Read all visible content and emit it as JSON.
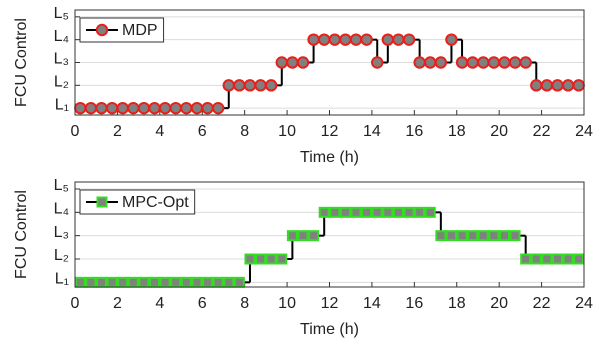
{
  "chart_data": [
    {
      "type": "step",
      "xlabel": "Time (h)",
      "ylabel": "FCU Control",
      "xlim": [
        0,
        24
      ],
      "xticks": [
        0,
        2,
        4,
        6,
        8,
        10,
        12,
        14,
        16,
        18,
        20,
        22,
        24
      ],
      "ylim": [
        0.7,
        5.3
      ],
      "yticks": [
        {
          "value": 1,
          "label": "L₁"
        },
        {
          "value": 2,
          "label": "L₂"
        },
        {
          "value": 3,
          "label": "L₃"
        },
        {
          "value": 4,
          "label": "L₄"
        },
        {
          "value": 5,
          "label": "L₅"
        }
      ],
      "grid": true,
      "legend": "upper left",
      "series": [
        {
          "name": "MDP",
          "color": "#000000",
          "marker": "circle",
          "marker_face_color": "#808080",
          "marker_edge_color": "#e8201c",
          "x": [
            0.25,
            0.75,
            1.25,
            1.75,
            2.25,
            2.75,
            3.25,
            3.75,
            4.25,
            4.75,
            5.25,
            5.75,
            6.25,
            6.75,
            7.25,
            7.75,
            8.25,
            8.75,
            9.25,
            9.75,
            10.25,
            10.75,
            11.25,
            11.75,
            12.25,
            12.75,
            13.25,
            13.75,
            14.25,
            14.75,
            15.25,
            15.75,
            16.25,
            16.75,
            17.25,
            17.75,
            18.25,
            18.75,
            19.25,
            19.75,
            20.25,
            20.75,
            21.25,
            21.75,
            22.25,
            22.75,
            23.25,
            23.75
          ],
          "values": [
            1,
            1,
            1,
            1,
            1,
            1,
            1,
            1,
            1,
            1,
            1,
            1,
            1,
            1,
            2,
            2,
            2,
            2,
            2,
            3,
            3,
            3,
            4,
            4,
            4,
            4,
            4,
            4,
            3,
            4,
            4,
            4,
            3,
            3,
            3,
            4,
            3,
            3,
            3,
            3,
            3,
            3,
            3,
            2,
            2,
            2,
            2,
            2
          ]
        }
      ]
    },
    {
      "type": "step",
      "xlabel": "Time (h)",
      "ylabel": "FCU Control",
      "xlim": [
        0,
        24
      ],
      "xticks": [
        0,
        2,
        4,
        6,
        8,
        10,
        12,
        14,
        16,
        18,
        20,
        22,
        24
      ],
      "ylim": [
        0.8,
        5.3
      ],
      "yticks": [
        {
          "value": 1,
          "label": "L₁"
        },
        {
          "value": 2,
          "label": "L₂"
        },
        {
          "value": 3,
          "label": "L₃"
        },
        {
          "value": 4,
          "label": "L₄"
        },
        {
          "value": 5,
          "label": "L₅"
        }
      ],
      "grid": true,
      "legend": "upper left",
      "series": [
        {
          "name": "MPC-Opt",
          "color": "#000000",
          "marker": "square",
          "marker_face_color": "#808080",
          "marker_edge_color": "#33dd22",
          "x": [
            0.25,
            0.75,
            1.25,
            1.75,
            2.25,
            2.75,
            3.25,
            3.75,
            4.25,
            4.75,
            5.25,
            5.75,
            6.25,
            6.75,
            7.25,
            7.75,
            8.25,
            8.75,
            9.25,
            9.75,
            10.25,
            10.75,
            11.25,
            11.75,
            12.25,
            12.75,
            13.25,
            13.75,
            14.25,
            14.75,
            15.25,
            15.75,
            16.25,
            16.75,
            17.25,
            17.75,
            18.25,
            18.75,
            19.25,
            19.75,
            20.25,
            20.75,
            21.25,
            21.75,
            22.25,
            22.75,
            23.25,
            23.75
          ],
          "values": [
            1,
            1,
            1,
            1,
            1,
            1,
            1,
            1,
            1,
            1,
            1,
            1,
            1,
            1,
            1,
            1,
            2,
            2,
            2,
            2,
            3,
            3,
            3,
            4,
            4,
            4,
            4,
            4,
            4,
            4,
            4,
            4,
            4,
            4,
            3,
            3,
            3,
            3,
            3,
            3,
            3,
            3,
            2,
            2,
            2,
            2,
            2,
            2
          ]
        }
      ]
    }
  ]
}
